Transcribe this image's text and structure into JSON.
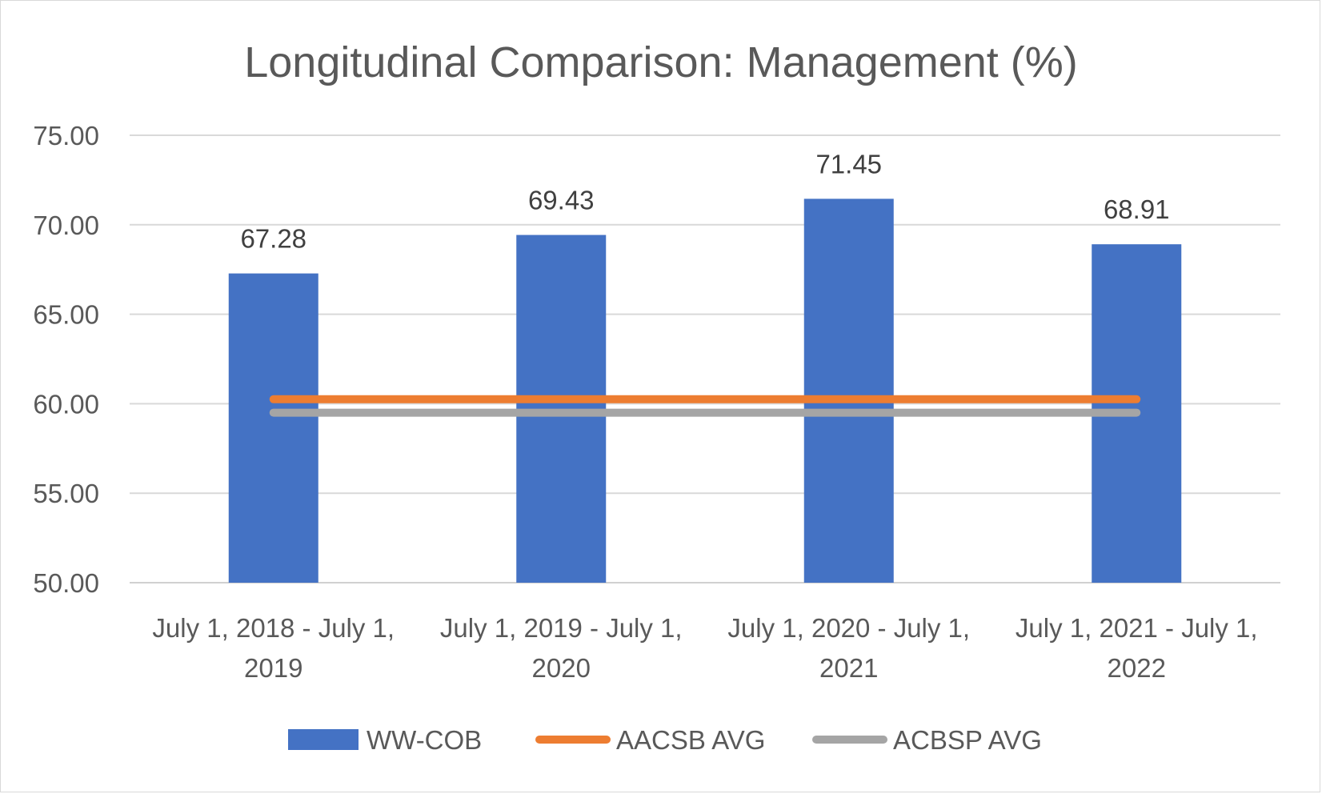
{
  "chart_data": {
    "type": "bar",
    "title": "Longitudinal Comparison: Management (%)",
    "xlabel": "",
    "ylabel": "",
    "ylim": [
      50,
      75
    ],
    "yticks": [
      "75.00",
      "70.00",
      "65.00",
      "60.00",
      "55.00",
      "50.00"
    ],
    "grid": true,
    "legend_position": "bottom",
    "categories": [
      [
        "July 1, 2018 - July 1,",
        "2019"
      ],
      [
        "July 1, 2019 - July 1,",
        "2020"
      ],
      [
        "July 1, 2020 - July 1,",
        "2021"
      ],
      [
        "July 1, 2021 - July 1,",
        "2022"
      ]
    ],
    "series": [
      {
        "name": "WW-COB",
        "type": "bar",
        "color": "#4472C4",
        "values": [
          67.28,
          69.43,
          71.45,
          68.91
        ],
        "labels": [
          "67.28",
          "69.43",
          "71.45",
          "68.91"
        ]
      },
      {
        "name": "AACSB AVG",
        "type": "line",
        "color": "#ED7D31",
        "values": [
          60.25,
          60.25,
          60.25,
          60.25
        ]
      },
      {
        "name": "ACBSP AVG",
        "type": "line",
        "color": "#A5A5A5",
        "values": [
          59.5,
          59.5,
          59.5,
          59.5
        ]
      }
    ]
  }
}
